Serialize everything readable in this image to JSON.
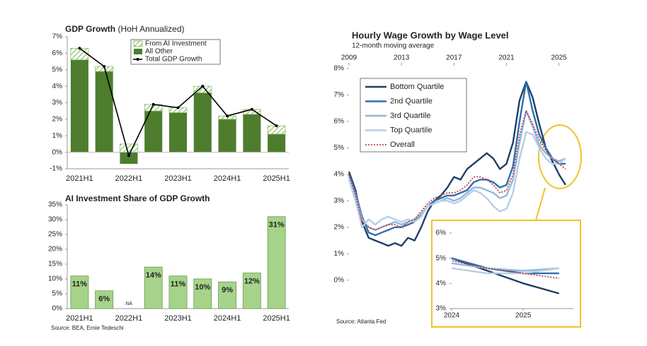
{
  "chart_data": [
    {
      "type": "bar",
      "title": "GDP Growth",
      "subtitle": "(HoH Annualized)",
      "categories": [
        "2021H1",
        null,
        "2022H1",
        null,
        "2023H1",
        null,
        "2024H1",
        null,
        "2025H1"
      ],
      "stacked": true,
      "series": [
        {
          "name": "From AI Investment",
          "color": "#8fbf6a",
          "hatch": true,
          "values": [
            0.7,
            0.3,
            0.5,
            0.4,
            0.3,
            0.4,
            0.2,
            0.3,
            0.5
          ]
        },
        {
          "name": "All Other",
          "color": "#4e7d2e",
          "values": [
            5.6,
            4.9,
            -0.7,
            2.5,
            2.4,
            3.6,
            2.0,
            2.3,
            1.1
          ]
        },
        {
          "name": "Total GDP Growth",
          "type": "line",
          "color": "#000000",
          "values": [
            6.3,
            5.2,
            -0.2,
            2.9,
            2.7,
            4.0,
            2.2,
            2.6,
            1.6
          ]
        }
      ],
      "ylim": [
        -1,
        7
      ],
      "yticks": [
        {
          "value": -1,
          "label": "-1%"
        },
        {
          "value": 0,
          "label": "0%"
        },
        {
          "value": 1,
          "label": "1%"
        },
        {
          "value": 2,
          "label": "2%"
        },
        {
          "value": 3,
          "label": "3%"
        },
        {
          "value": 4,
          "label": "4%"
        },
        {
          "value": 5,
          "label": "5%"
        },
        {
          "value": 6,
          "label": "6%"
        },
        {
          "value": 7,
          "label": "7%"
        }
      ],
      "legend": "top-right"
    },
    {
      "type": "bar",
      "title": "AI Investment Share of GDP Growth",
      "categories": [
        "2021H1",
        null,
        "2022H1",
        null,
        "2023H1",
        null,
        "2024H1",
        null,
        "2025H1"
      ],
      "values": [
        11,
        6,
        null,
        14,
        11,
        10,
        9,
        12,
        31
      ],
      "value_labels": [
        "11%",
        "6%",
        "NA",
        "14%",
        "11%",
        "10%",
        "9%",
        "12%",
        "31%"
      ],
      "color": "#a6d38a",
      "ylim": [
        0,
        35
      ],
      "yticks": [
        {
          "value": 0,
          "label": "0%"
        },
        {
          "value": 5,
          "label": "5%"
        },
        {
          "value": 10,
          "label": "10%"
        },
        {
          "value": 15,
          "label": "15%"
        },
        {
          "value": 20,
          "label": "20%"
        },
        {
          "value": 25,
          "label": "25%"
        },
        {
          "value": 30,
          "label": "30%"
        },
        {
          "value": 35,
          "label": "35%"
        }
      ],
      "source": "Source: BEA, Ernie Tedeschi"
    },
    {
      "type": "line",
      "title": "Hourly Wage Growth by Wage Level",
      "subtitle": "12-month moving average",
      "x": [
        2009,
        2009.5,
        2010,
        2010.5,
        2011,
        2011.5,
        2012,
        2012.5,
        2013,
        2013.5,
        2014,
        2014.5,
        2015,
        2015.5,
        2016,
        2016.5,
        2017,
        2017.5,
        2018,
        2018.5,
        2019,
        2019.5,
        2020,
        2020.5,
        2021,
        2021.5,
        2022,
        2022.5,
        2023,
        2023.5,
        2024,
        2024.5,
        2025,
        2025.5
      ],
      "series": [
        {
          "name": "Bottom Quartile",
          "color": "#1f3f66",
          "values": [
            4.1,
            3.4,
            2.2,
            1.6,
            1.5,
            1.4,
            1.3,
            1.4,
            1.3,
            1.6,
            1.5,
            2.0,
            2.6,
            3.0,
            3.2,
            3.5,
            3.9,
            3.8,
            4.2,
            4.4,
            4.6,
            4.8,
            4.6,
            4.2,
            4.4,
            5.2,
            6.8,
            7.5,
            6.9,
            5.9,
            5.0,
            4.5,
            4.0,
            3.6
          ]
        },
        {
          "name": "2nd Quartile",
          "color": "#2e6fb0",
          "values": [
            4.0,
            3.3,
            2.4,
            1.8,
            1.7,
            1.8,
            1.9,
            2.0,
            2.0,
            2.1,
            2.2,
            2.5,
            2.8,
            3.0,
            3.1,
            3.2,
            3.2,
            3.3,
            3.4,
            3.7,
            3.8,
            3.8,
            3.7,
            3.5,
            3.6,
            4.3,
            6.0,
            7.5,
            6.4,
            5.5,
            5.0,
            4.6,
            4.4,
            4.4
          ]
        },
        {
          "name": "3rd Quartile",
          "color": "#8fb8dc",
          "values": [
            3.9,
            3.2,
            2.3,
            2.0,
            1.9,
            2.0,
            2.1,
            2.2,
            2.1,
            2.2,
            2.3,
            2.5,
            2.8,
            2.9,
            3.0,
            3.1,
            3.0,
            3.1,
            3.3,
            3.5,
            3.5,
            3.4,
            3.3,
            3.1,
            3.2,
            3.8,
            5.2,
            6.4,
            5.8,
            5.1,
            4.8,
            4.6,
            4.5,
            4.6
          ]
        },
        {
          "name": "Top Quartile",
          "color": "#b8cde6",
          "values": [
            3.8,
            3.0,
            2.0,
            2.3,
            2.1,
            2.3,
            2.4,
            2.3,
            2.2,
            2.3,
            2.2,
            2.4,
            2.8,
            2.9,
            3.0,
            3.0,
            2.9,
            3.0,
            3.2,
            3.4,
            3.3,
            3.1,
            2.8,
            2.6,
            2.7,
            3.3,
            4.6,
            5.6,
            5.5,
            5.0,
            4.6,
            4.4,
            4.4,
            4.6
          ]
        },
        {
          "name": "Overall",
          "color": "#c0282e",
          "style": "dotted",
          "values": [
            4.0,
            3.2,
            2.2,
            2.0,
            1.9,
            2.0,
            2.1,
            2.1,
            2.0,
            2.2,
            2.3,
            2.6,
            2.9,
            3.1,
            3.2,
            3.3,
            3.3,
            3.4,
            3.6,
            3.9,
            3.9,
            3.8,
            3.6,
            3.3,
            3.4,
            4.0,
            5.5,
            6.4,
            5.9,
            5.3,
            4.9,
            4.6,
            4.4,
            4.2
          ]
        }
      ],
      "xlim": [
        2009,
        2026.1
      ],
      "xticks": [
        2009,
        2013,
        2017,
        2021,
        2025
      ],
      "ylim": [
        -1.1,
        8
      ],
      "yticks": [
        {
          "value": 0,
          "label": "0%"
        },
        {
          "value": 1,
          "label": "1%"
        },
        {
          "value": 2,
          "label": "2%"
        },
        {
          "value": 3,
          "label": "3%"
        },
        {
          "value": 4,
          "label": "4%"
        },
        {
          "value": 5,
          "label": "5%"
        },
        {
          "value": 6,
          "label": "6%"
        },
        {
          "value": 7,
          "label": "7%"
        },
        {
          "value": 8,
          "label": "8%"
        }
      ],
      "legend": "top-left",
      "inset": {
        "xlim": [
          2024,
          2025.7
        ],
        "xticks": [
          2024,
          2025
        ],
        "ylim": [
          3,
          6
        ],
        "yticks": [
          {
            "value": 3,
            "label": "3%"
          },
          {
            "value": 4,
            "label": "4%"
          },
          {
            "value": 5,
            "label": "5%"
          },
          {
            "value": 6,
            "label": "6%"
          }
        ]
      },
      "source": "Source: Atlanta Fed"
    }
  ]
}
